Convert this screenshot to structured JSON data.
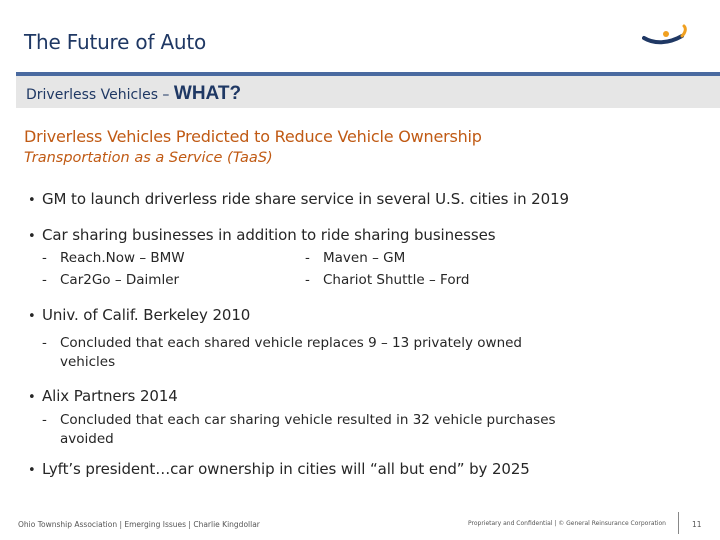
{
  "header": {
    "title": "The Future of Auto",
    "subtitle_prefix": "Driverless Vehicles – ",
    "subtitle_emphasis": "WHAT?"
  },
  "section": {
    "heading": "Driverless Vehicles Predicted to Reduce Vehicle Ownership",
    "subheading": "Transportation as a Service (TaaS)"
  },
  "bullets": [
    "GM to launch driverless ride share service in several U.S. cities in 2019",
    "Car sharing businesses in addition to ride sharing businesses",
    "Univ. of Calif. Berkeley 2010",
    "Alix Partners 2014",
    "Lyft’s president…car ownership in cities will “all but end” by 2025"
  ],
  "car_sharing_examples": {
    "left": [
      "Reach.Now – BMW",
      "Car2Go – Daimler"
    ],
    "right": [
      "Maven – GM",
      "Chariot Shuttle – Ford"
    ]
  },
  "berkeley_detail": [
    "Concluded that each shared vehicle replaces 9 – 13 privately owned",
    "vehicles"
  ],
  "alix_detail": [
    "Concluded that each car sharing vehicle resulted in 32 vehicle purchases",
    "avoided"
  ],
  "footer": {
    "left": "Ohio Township Association | Emerging Issues | Charlie Kingdollar",
    "middle": "Proprietary and Confidential | © General Reinsurance Corporation",
    "page": "11"
  },
  "colors": {
    "title": "#1f3864",
    "accent_rule": "#4a6aa0",
    "heading": "#c05a14",
    "subbar": "#e6e6e6"
  }
}
